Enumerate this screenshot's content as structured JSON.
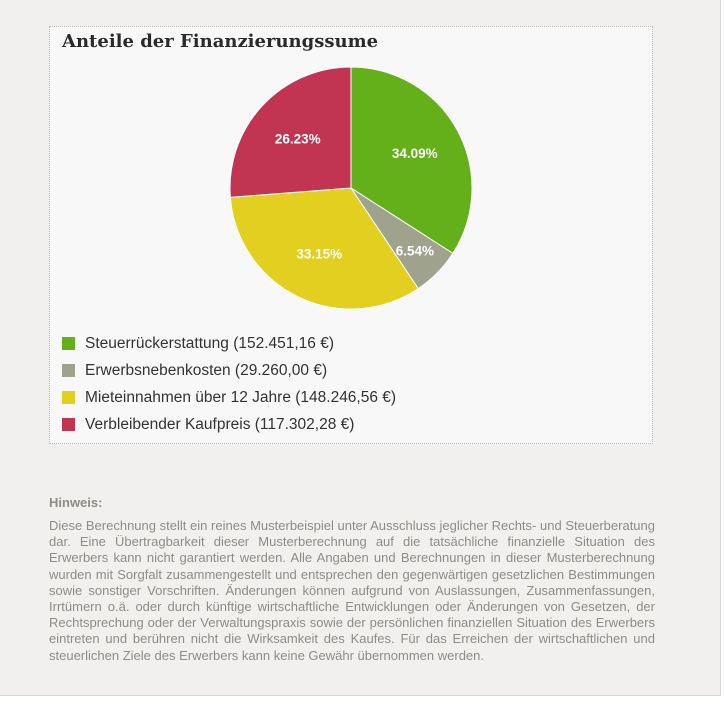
{
  "chart_data": {
    "type": "pie",
    "title": "Anteile der Finanzierungssume",
    "slices": [
      {
        "label": "Steuerrückerstattung (152.451,16 €)",
        "value": 152451.16,
        "percent_label": "34.09%",
        "color": "#63b01a"
      },
      {
        "label": "Erwerbsnebenkosten (29.260,00 €)",
        "value": 29260.0,
        "percent_label": "6.54%",
        "color": "#9fa28d"
      },
      {
        "label": "Mieteinnahmen über 12 Jahre (148.246,56 €)",
        "value": 148246.56,
        "percent_label": "33.15%",
        "color": "#e3cf1f"
      },
      {
        "label": "Verbleibender Kaufpreis (117.302,28 €)",
        "value": 117302.28,
        "percent_label": "26.23%",
        "color": "#c23552"
      }
    ],
    "legend_position": "bottom-left"
  },
  "note": {
    "heading": "Hinweis:",
    "text": "Diese Berechnung stellt ein reines Musterbeispiel unter Ausschluss jeglicher Rechts- und Steuerberatung dar. Eine Übertragbarkeit dieser Musterberechnung auf die tatsächliche finanzielle Situation des Erwerbers kann nicht garantiert werden. Alle Angaben und Berechnungen in dieser Musterberechnung wurden mit Sorgfalt zusammengestellt und entsprechen den gegenwärtigen gesetzlichen Bestimmungen sowie sonstiger Vorschriften. Änderungen können aufgrund von Auslassungen, Zusammenfassungen, Irrtümern o.ä. oder durch künftige wirtschaftliche Entwicklungen oder Änderungen von Gesetzen, der Rechtsprechung oder der Verwaltungspraxis sowie der persönlichen finanziellen Situation des Erwerbers eintreten und berühren nicht die Wirksamkeit des Kaufes. Für das Erreichen der wirtschaftlichen und steuerlichen Ziele des Erwerbers kann keine Gewähr übernommen werden."
  }
}
